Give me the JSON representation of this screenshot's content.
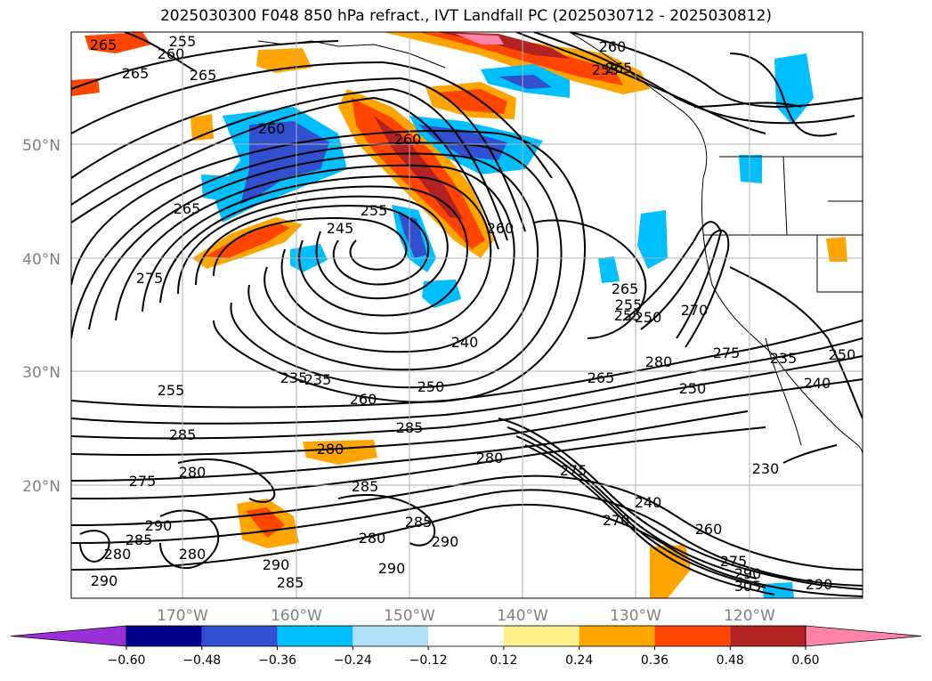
{
  "title": "2025030300 F048 850 hPa refract., IVT Landfall PC (2025030712 - 2025030812)",
  "lat_labels": [
    "50°N",
    "40°N",
    "30°N",
    "20°N"
  ],
  "lon_labels": [
    "170°W",
    "160°W",
    "150°W",
    "140°W",
    "130°W",
    "120°W"
  ],
  "colorbar": {
    "ticks": [
      "−0.60",
      "−0.48",
      "−0.36",
      "−0.24",
      "−0.12",
      "0.12",
      "0.24",
      "0.36",
      "0.48",
      "0.60"
    ],
    "colors": [
      "#9b30d9",
      "#00008b",
      "#3050d0",
      "#00bfff",
      "#b0e0fa",
      "#ffffff",
      "#fff08c",
      "#ffa500",
      "#ff4500",
      "#b22222",
      "#ff82a8",
      "#ff82a8"
    ]
  },
  "contour_labels": [
    "265",
    "255",
    "260",
    "265",
    "265",
    "260",
    "265",
    "255",
    "260",
    "265",
    "260",
    "235",
    "255",
    "245",
    "260",
    "255",
    "275",
    "265",
    "255",
    "250",
    "240",
    "270",
    "280",
    "275",
    "235",
    "240",
    "250",
    "235",
    "260",
    "250",
    "265",
    "255",
    "285",
    "285",
    "280",
    "280",
    "275",
    "280",
    "285",
    "230",
    "280",
    "285",
    "290",
    "270",
    "260",
    "240",
    "275",
    "285",
    "290",
    "280",
    "290",
    "280",
    "290",
    "285",
    "290",
    "290",
    "305",
    "290",
    "250",
    "275"
  ],
  "legend_extend": "both"
}
